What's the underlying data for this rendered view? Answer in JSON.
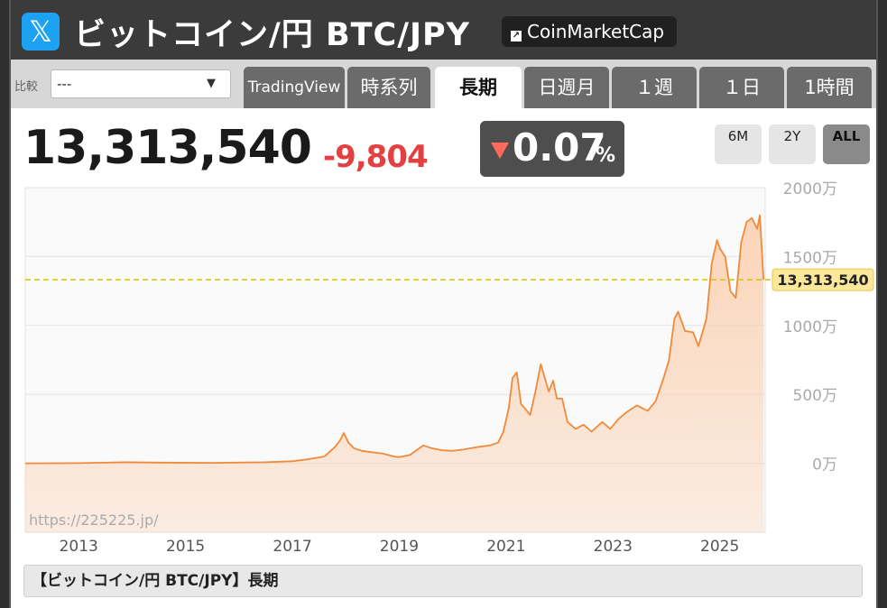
{
  "header": {
    "title": "ビットコイン/円 BTC/JPY",
    "x_icon_glyph": "𝕏",
    "coinmarketcap_label": "CoinMarketCap"
  },
  "compare": {
    "label": "比較",
    "value": "---",
    "arrow": "▼"
  },
  "tabs": [
    {
      "label": "TradingView",
      "active": false
    },
    {
      "label": "時系列",
      "active": false
    },
    {
      "label": "長期",
      "active": true
    },
    {
      "label": "日週月",
      "active": false
    },
    {
      "label": "１週",
      "active": false
    },
    {
      "label": "１日",
      "active": false
    },
    {
      "label": "1時間",
      "active": false
    }
  ],
  "quote": {
    "price": "13,313,540",
    "change": "-9,804",
    "change_pct": "0.07",
    "pct_unit": "%"
  },
  "ranges": [
    {
      "label": "6M",
      "active": false
    },
    {
      "label": "2Y",
      "active": false
    },
    {
      "label": "ALL",
      "active": true
    }
  ],
  "colors": {
    "line": "#f08a3a",
    "fill": "#fbd2b4",
    "current": "#d4c400",
    "down": "#e34141"
  },
  "chart_data": {
    "type": "area",
    "watermark": "https://225225.jp/",
    "x_ticks": [
      "2013",
      "2015",
      "2017",
      "2019",
      "2021",
      "2023",
      "2025"
    ],
    "y_ticks": [
      "0万",
      "500万",
      "1000万",
      "1500万",
      "2000万"
    ],
    "y_tick_values": [
      0,
      500,
      1000,
      1500,
      2000
    ],
    "y_unit": "万",
    "xlim": [
      2012.0,
      2025.85
    ],
    "ylim": [
      -500,
      2000
    ],
    "current_value": 1331.354,
    "current_label": "13,313,540",
    "series": [
      {
        "x": [
          2012.0,
          2013.0,
          2013.85,
          2014.5,
          2015.5,
          2016.5,
          2017.0,
          2017.3,
          2017.6,
          2017.8,
          2017.9,
          2017.96,
          2018.05,
          2018.15,
          2018.3,
          2018.5,
          2018.7,
          2018.9,
          2019.0,
          2019.2,
          2019.45,
          2019.6,
          2019.8,
          2020.0,
          2020.2,
          2020.5,
          2020.7,
          2020.85,
          2020.95,
          2021.05,
          2021.12,
          2021.2,
          2021.28,
          2021.35,
          2021.45,
          2021.55,
          2021.65,
          2021.8,
          2021.88,
          2021.95,
          2022.05,
          2022.15,
          2022.3,
          2022.45,
          2022.6,
          2022.8,
          2022.95,
          2023.1,
          2023.25,
          2023.45,
          2023.65,
          2023.8,
          2023.95,
          2024.05,
          2024.15,
          2024.22,
          2024.35,
          2024.5,
          2024.6,
          2024.75,
          2024.85,
          2024.95,
          2025.0,
          2025.1,
          2025.2,
          2025.3,
          2025.4,
          2025.5,
          2025.6,
          2025.7,
          2025.75,
          2025.82
        ],
        "values": [
          0,
          1,
          8,
          5,
          3,
          8,
          15,
          30,
          50,
          120,
          170,
          220,
          150,
          110,
          90,
          80,
          70,
          50,
          45,
          60,
          130,
          110,
          95,
          90,
          100,
          120,
          130,
          150,
          230,
          400,
          620,
          660,
          430,
          400,
          350,
          520,
          720,
          520,
          600,
          470,
          470,
          300,
          250,
          280,
          230,
          300,
          250,
          320,
          370,
          420,
          380,
          450,
          620,
          750,
          1050,
          1100,
          960,
          950,
          850,
          1050,
          1450,
          1620,
          1560,
          1500,
          1250,
          1200,
          1600,
          1750,
          1780,
          1700,
          1800,
          1331
        ]
      }
    ]
  },
  "caption": "【ビットコイン/円 BTC/JPY】長期"
}
